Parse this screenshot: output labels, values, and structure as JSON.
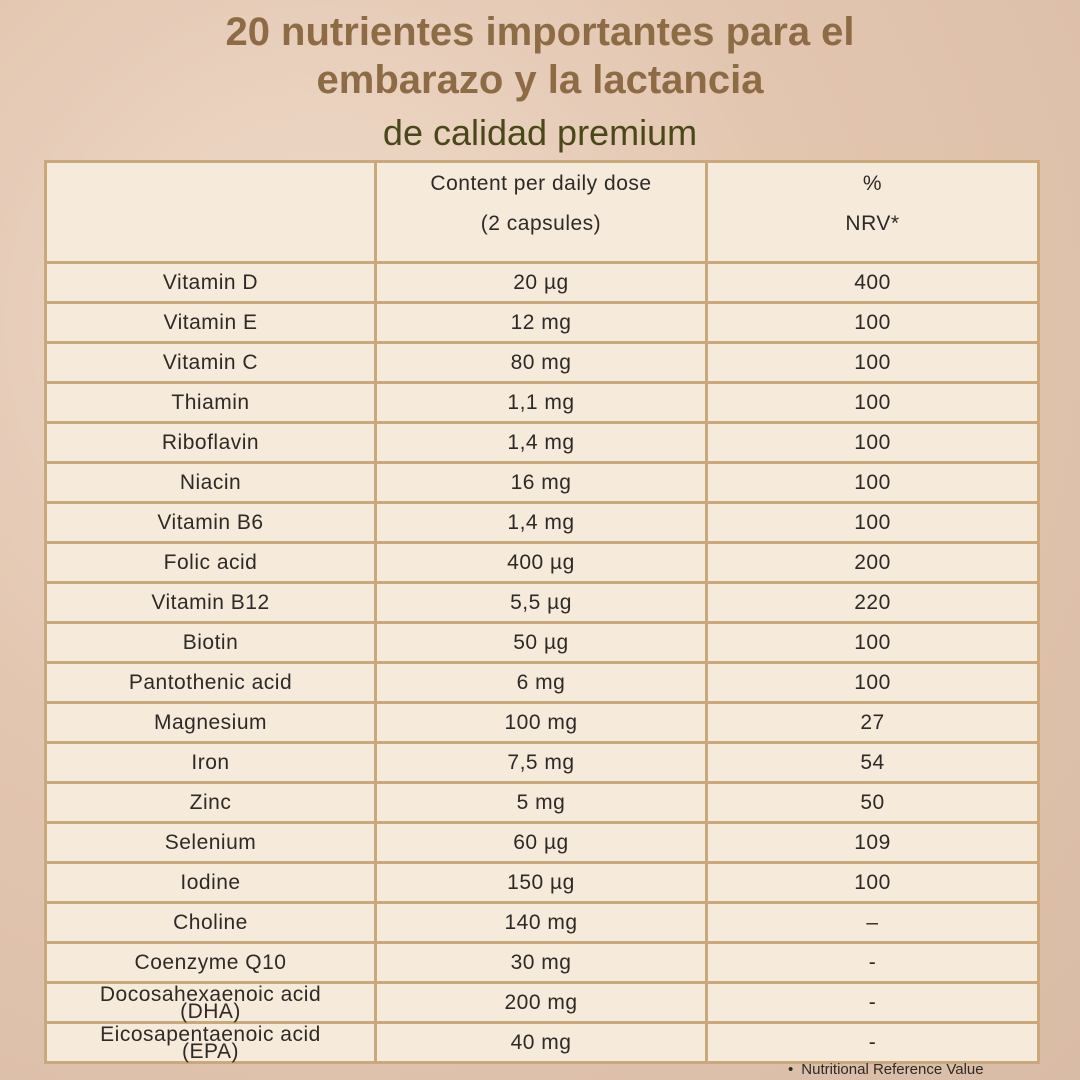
{
  "header": {
    "title_lines": [
      "20 nutrientes importantes para el",
      "embarazo y la lactancia"
    ],
    "subtitle": "de calidad premium"
  },
  "table": {
    "header": [
      [
        "Content per daily dose",
        "(2 capsules)"
      ],
      [
        "%",
        "NRV*"
      ]
    ],
    "rows": [
      [
        "Vitamin D",
        "20 µg",
        "400"
      ],
      [
        "Vitamin E",
        "12 mg",
        "100"
      ],
      [
        "Vitamin C",
        "80 mg",
        "100"
      ],
      [
        "Thiamin",
        "1,1 mg",
        "100"
      ],
      [
        "Riboflavin",
        "1,4 mg",
        "100"
      ],
      [
        "Niacin",
        "16 mg",
        "100"
      ],
      [
        "Vitamin B6",
        "1,4 mg",
        "100"
      ],
      [
        "Folic acid",
        "400 µg",
        "200"
      ],
      [
        "Vitamin B12",
        "5,5 µg",
        "220"
      ],
      [
        "Biotin",
        "50 µg",
        "100"
      ],
      [
        "Pantothenic acid",
        "6 mg",
        "100"
      ],
      [
        "Magnesium",
        "100 mg",
        "27"
      ],
      [
        "Iron",
        "7,5 mg",
        "54"
      ],
      [
        "Zinc",
        "5 mg",
        "50"
      ],
      [
        "Selenium",
        "60 µg",
        "109"
      ],
      [
        "Iodine",
        "150 µg",
        "100"
      ],
      [
        "Choline",
        "140 mg",
        "–"
      ],
      [
        "Coenzyme Q10",
        "30 mg",
        "-"
      ],
      [
        "Docosahexaenoic acid (DHA)",
        "200 mg",
        "-"
      ],
      [
        "Eicosapentaenoic acid (EPA)",
        "40 mg",
        "-"
      ]
    ]
  },
  "footnote": "Nutritional Reference Value"
}
